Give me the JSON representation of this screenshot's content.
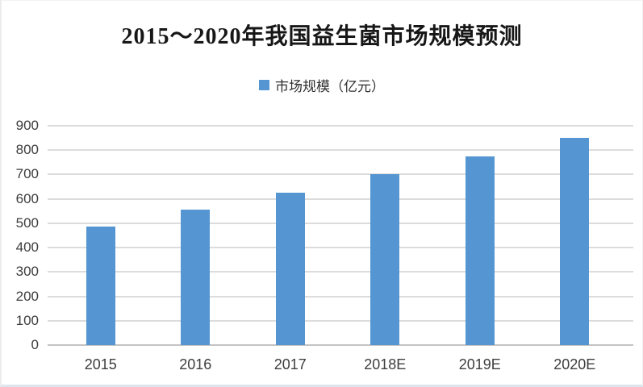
{
  "chart_data": {
    "type": "bar",
    "title": "2015～2020年我国益生菌市场规模预测",
    "legend": [
      {
        "label": "市场规模（亿元）",
        "marker": "legend-square-icon",
        "color": "#5596d2"
      }
    ],
    "legend_position": "top-center",
    "categories": [
      "2015",
      "2016",
      "2017",
      "2018E",
      "2019E",
      "2020E"
    ],
    "series": [
      {
        "name": "市场规模（亿元）",
        "values": [
          485,
          555,
          625,
          700,
          775,
          850
        ]
      }
    ],
    "ylim": [
      0,
      900
    ],
    "ytick_step": 100,
    "grid": true,
    "bar_color": "#5596d2",
    "gridline_color": "#dcdcdc",
    "axis_line_color": "#c3c3c3",
    "tick_label_color": "#3d3d3d",
    "title_color": "#171717"
  }
}
